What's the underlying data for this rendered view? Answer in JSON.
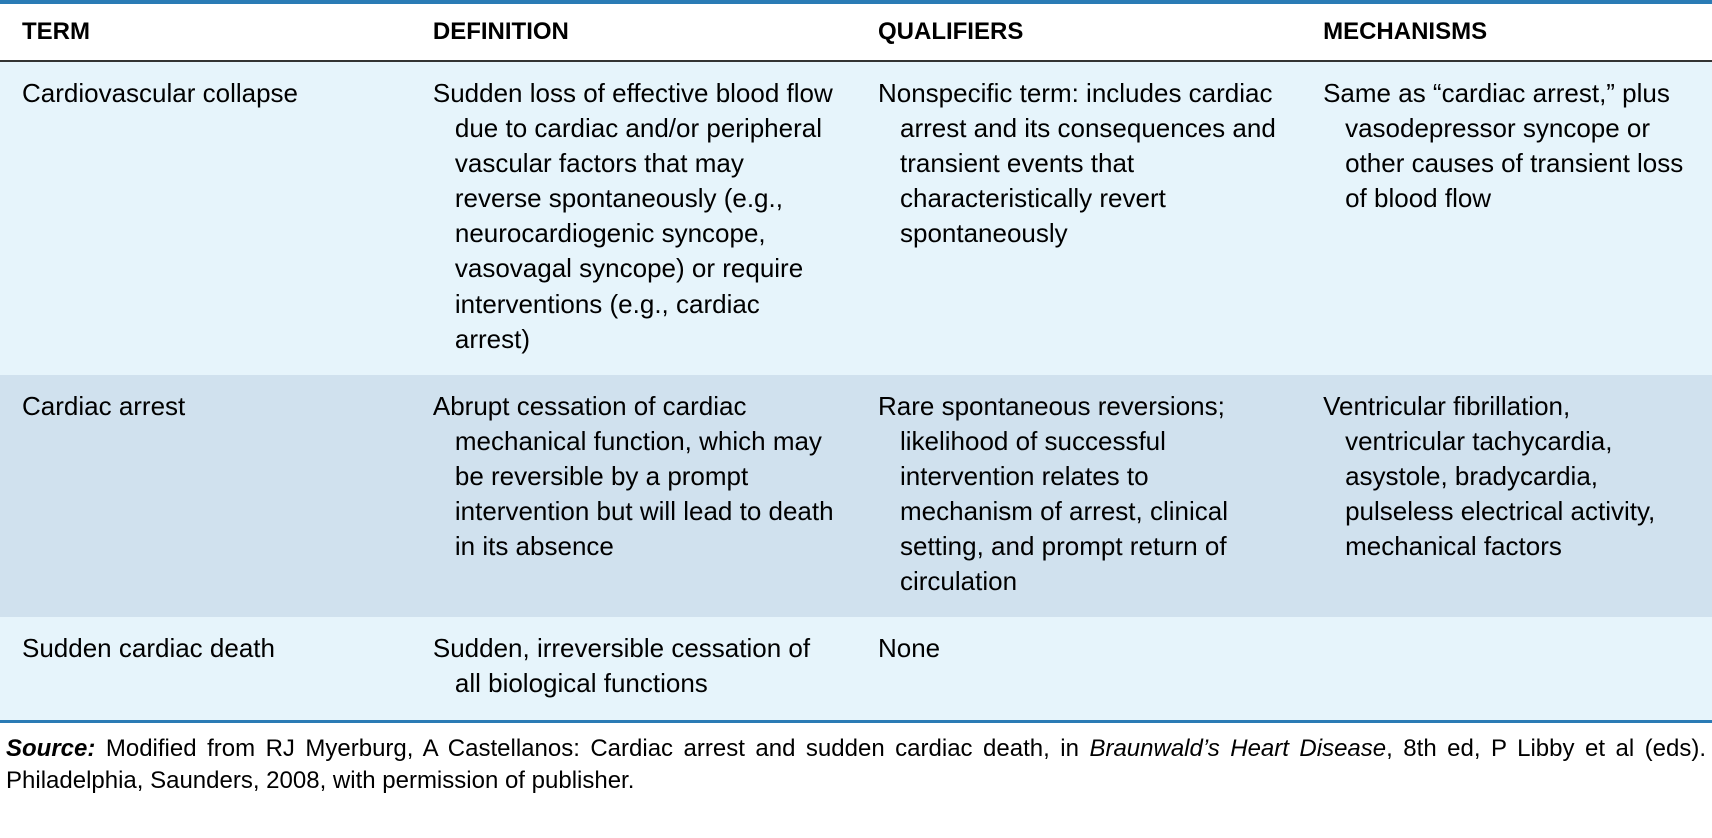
{
  "table": {
    "header_bg": "#ffffff",
    "border_top_color": "#2a7bb5",
    "border_bottom_color": "#2a7bb5",
    "header_rule_color": "#333333",
    "row_light_bg": "#e6f4fb",
    "row_dark_bg": "#d0e1ee",
    "text_color": "#000000",
    "font_size_header": 24,
    "font_size_body": 26,
    "font_size_source": 24,
    "columns": [
      "TERM",
      "DEFINITION",
      "QUALIFIERS",
      "MECHANISMS"
    ],
    "rows": [
      {
        "term": "Cardiovascular collapse",
        "definition": "Sudden loss of effective blood flow due to cardiac and/or peripheral vascular factors that may reverse spontaneously (e.g., neurocardiogenic syncope, vasovagal syncope) or require interventions (e.g., cardiac arrest)",
        "qualifiers": "Nonspecific term: includes cardiac arrest and its consequences and transient events that characteristically revert spontaneously",
        "mechanisms": "Same as “cardiac arrest,” plus vasodepressor syncope or other causes of transient loss of blood flow"
      },
      {
        "term": "Cardiac arrest",
        "definition": "Abrupt cessation of cardiac mechanical function, which may be reversible by a prompt intervention but will lead to death in its absence",
        "qualifiers": "Rare spontaneous reversions; likelihood of successful intervention relates to mechanism of arrest, clinical setting, and prompt return of circulation",
        "mechanisms": "Ventricular fibrillation, ventricular tachycardia, asystole, bradycardia, pulseless electrical activity, mechanical factors"
      },
      {
        "term": "Sudden cardiac death",
        "definition": "Sudden, irreversible cessation of all biological functions",
        "qualifiers": "None",
        "mechanisms": ""
      }
    ]
  },
  "source": {
    "label": "Source:",
    "text_before_italic": " Modified from RJ Myerburg, A Castellanos: Cardiac arrest and sudden cardiac death, in ",
    "italic_title": "Braunwald’s Heart Disease",
    "text_after_italic": ", 8th ed, P Libby et al (eds). Philadelphia, Saunders, 2008, with permission of publisher."
  }
}
